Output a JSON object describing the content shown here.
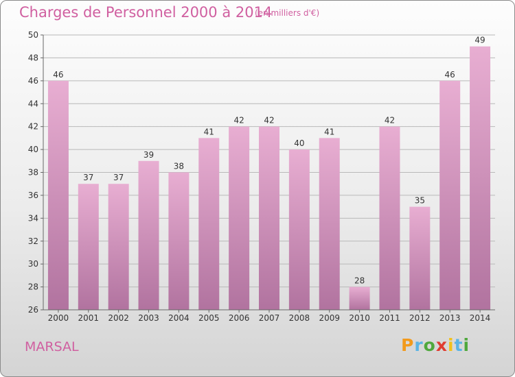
{
  "title": "Charges de Personnel 2000 à 2014",
  "subtitle": "(en milliers d'€)",
  "commune": "MARSAL",
  "logo": {
    "letters": [
      "P",
      "r",
      "o",
      "x",
      "i",
      "t",
      "i"
    ],
    "colors": [
      "#f29a1c",
      "#5bb4e5",
      "#4fa83d",
      "#e03c31",
      "#f2c11c",
      "#5bb4e5",
      "#4fa83d"
    ]
  },
  "colors": {
    "bar_top": "#e8aed2",
    "bar_bottom": "#b1739f",
    "title": "#d05fa0"
  },
  "chart_data": {
    "type": "bar",
    "categories": [
      "2000",
      "2001",
      "2002",
      "2003",
      "2004",
      "2005",
      "2006",
      "2007",
      "2008",
      "2009",
      "2010",
      "2011",
      "2012",
      "2013",
      "2014"
    ],
    "values": [
      46,
      37,
      37,
      39,
      38,
      41,
      42,
      42,
      40,
      41,
      28,
      42,
      35,
      46,
      49
    ],
    "ylim": [
      26,
      50
    ],
    "yticks": [
      26,
      28,
      30,
      32,
      34,
      36,
      38,
      40,
      42,
      44,
      46,
      48,
      50
    ],
    "grid": true
  }
}
